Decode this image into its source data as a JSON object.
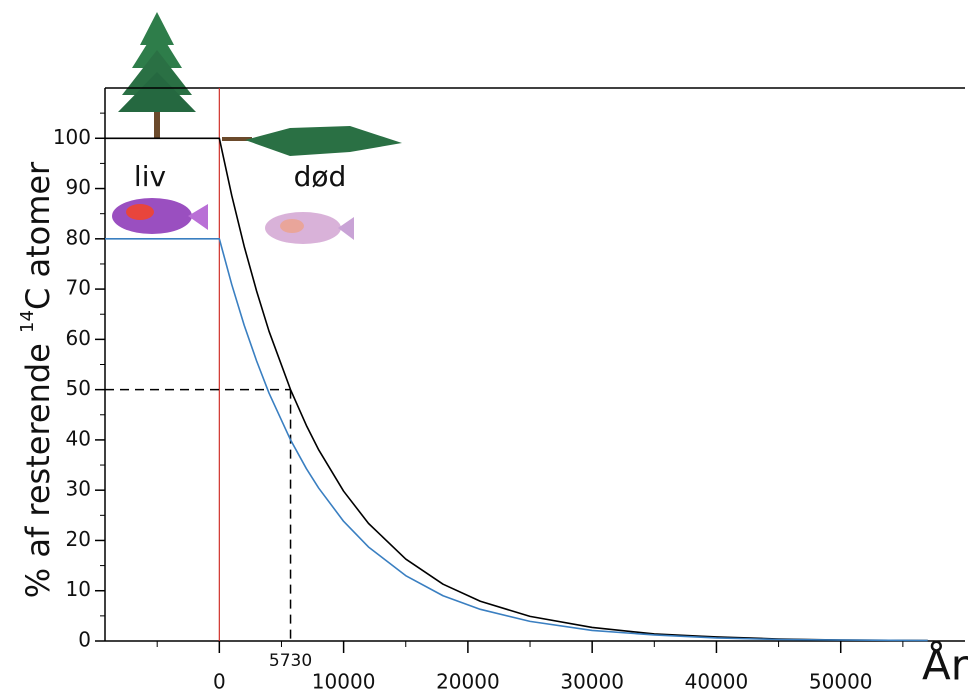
{
  "chart_data": {
    "type": "line",
    "x": [
      -9200,
      0,
      1000,
      2000,
      3000,
      4000,
      5730,
      7000,
      8000,
      10000,
      12000,
      15000,
      18000,
      21000,
      25000,
      30000,
      35000,
      40000,
      45000,
      50000,
      57000
    ],
    "series": [
      {
        "color": "#000000",
        "values": [
          100,
          100,
          88.6,
          78.5,
          69.6,
          61.6,
          50,
          42.9,
          38.0,
          29.8,
          23.4,
          16.3,
          11.3,
          7.9,
          4.9,
          2.7,
          1.4,
          0.8,
          0.4,
          0.2,
          0.1
        ]
      },
      {
        "color": "#3a7fc1",
        "values": [
          80,
          80,
          70.9,
          62.8,
          55.7,
          49.3,
          40,
          34.3,
          30.4,
          23.8,
          18.7,
          13.0,
          9.0,
          6.3,
          3.9,
          2.1,
          1.2,
          0.6,
          0.3,
          0.2,
          0.1
        ]
      }
    ],
    "xlim": [
      -9200,
      60000
    ],
    "ylim": [
      0,
      110
    ],
    "xticks": [
      0,
      10000,
      20000,
      30000,
      40000,
      50000
    ],
    "x_minor_ticks": [
      -5000,
      5000,
      15000,
      25000,
      35000,
      45000,
      55000
    ],
    "yticks": [
      0,
      10,
      20,
      30,
      40,
      50,
      60,
      70,
      80,
      90,
      100
    ],
    "y_minor_ticks": [
      5,
      15,
      25,
      35,
      45,
      55,
      65,
      75,
      85,
      95,
      105
    ],
    "x_label": "År",
    "y_label": {
      "prefix": "% af resterende ",
      "superscript": "14",
      "suffix": "C atomer"
    },
    "death_x": 0,
    "death_color": "#d0302a",
    "half_life": 5730,
    "half_level": 50,
    "annotations": {
      "alive": "liv",
      "dead": "død"
    }
  }
}
